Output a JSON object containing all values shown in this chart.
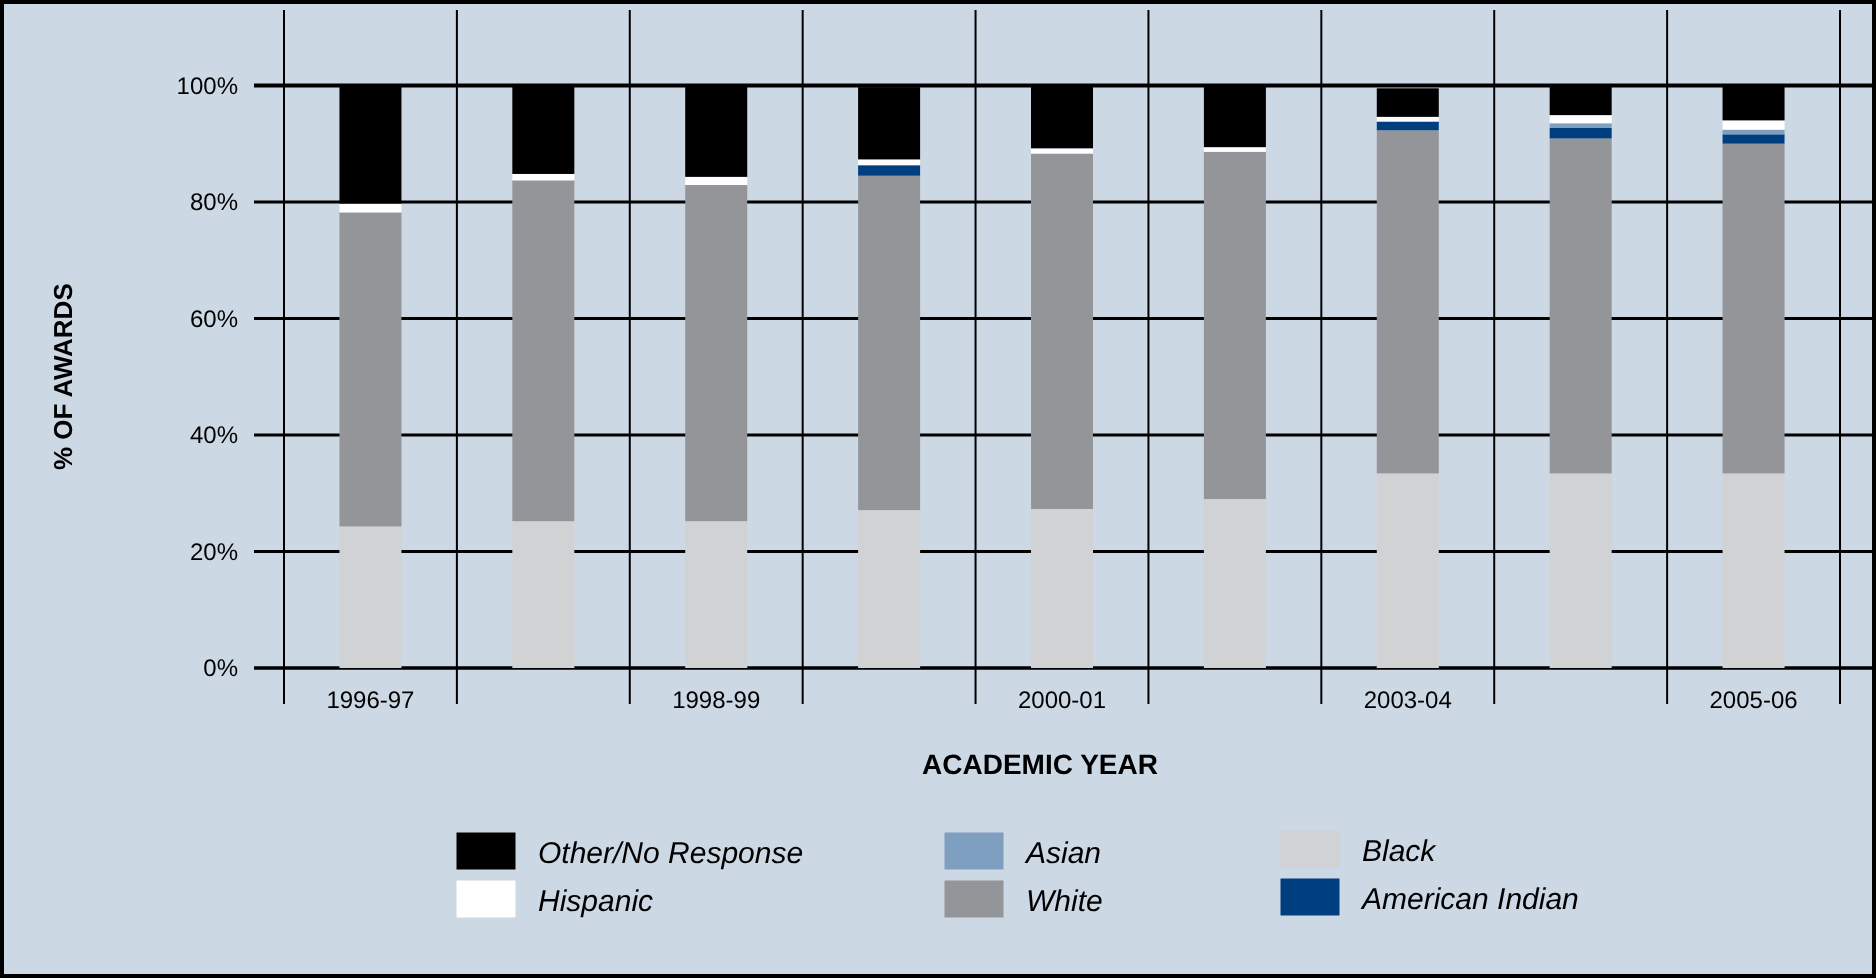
{
  "chart_data": {
    "type": "bar",
    "stacked": true,
    "xlabel": "ACADEMIC YEAR",
    "ylabel": "% OF AWARDS",
    "categories": [
      "1996-97",
      null,
      "1998-99",
      null,
      "2000-01",
      null,
      "2003-04",
      null,
      "2005-06"
    ],
    "ylim": [
      0,
      100
    ],
    "yticks": [
      {
        "value": 0,
        "label": "0%"
      },
      {
        "value": 20,
        "label": "20%"
      },
      {
        "value": 40,
        "label": "40%"
      },
      {
        "value": 60,
        "label": "60%"
      },
      {
        "value": 80,
        "label": "80%"
      },
      {
        "value": 100,
        "label": "100%"
      }
    ],
    "grid": true,
    "legend": "bottom",
    "series": [
      {
        "name": "Black",
        "color": "#d1d2d4",
        "values": [
          24.3,
          25.2,
          25.2,
          27.1,
          27.3,
          29.0,
          33.4,
          33.4,
          33.4
        ]
      },
      {
        "name": "White",
        "color": "#939598",
        "values": [
          53.9,
          58.5,
          57.7,
          57.4,
          61.0,
          59.6,
          58.9,
          57.5,
          56.6
        ]
      },
      {
        "name": "American Indian",
        "color": "#003f7f",
        "values": [
          0,
          0,
          0,
          1.8,
          0,
          0,
          1.5,
          1.8,
          1.6
        ]
      },
      {
        "name": "Asian",
        "color": "#7f9fc0",
        "values": [
          0,
          0,
          0,
          null,
          0,
          0,
          null,
          0.8,
          0.8
        ]
      },
      {
        "name": "Hispanic",
        "color": "#ffffff",
        "values": [
          1.5,
          1.1,
          1.4,
          1.0,
          0.9,
          0.8,
          0.8,
          1.4,
          1.6
        ]
      },
      {
        "name": "Other/No Response",
        "color": "#000000",
        "values": [
          20.3,
          15.2,
          15.7,
          12.4,
          10.8,
          10.6,
          4.9,
          5.1,
          6.0
        ]
      }
    ]
  }
}
